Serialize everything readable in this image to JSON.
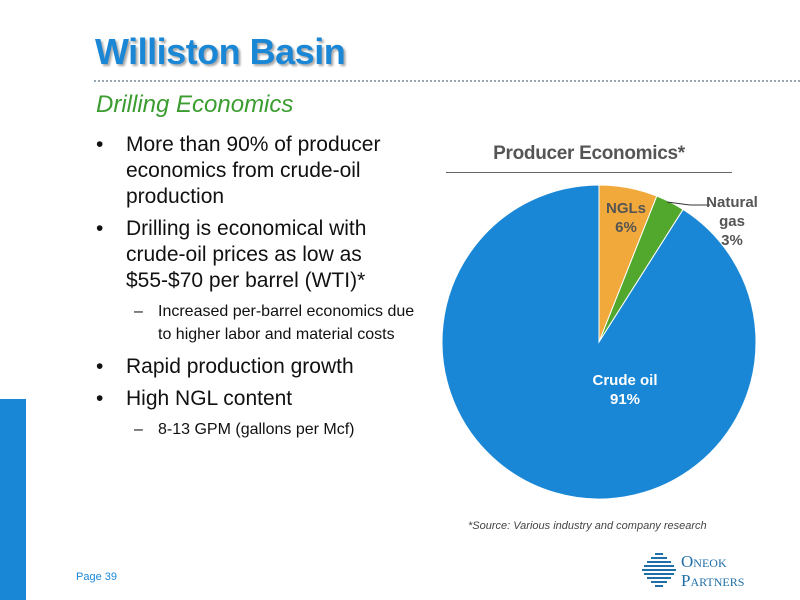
{
  "slide": {
    "title": "Williston Basin",
    "subtitle": "Drilling Economics",
    "page_label": "Page 39",
    "source_note": "*Source: Various industry and company research"
  },
  "bullets": [
    {
      "level": 1,
      "text": "More than 90% of producer economics from crude-oil production"
    },
    {
      "level": 1,
      "text": "Drilling is economical with crude-oil prices as low as $55-$70 per barrel (WTI)*"
    },
    {
      "level": 2,
      "text": "Increased per-barrel economics due to higher labor and material costs"
    },
    {
      "level": 1,
      "text": "Rapid production growth"
    },
    {
      "level": 1,
      "text": "High NGL content"
    },
    {
      "level": 2,
      "text": "8-13 GPM (gallons per Mcf)"
    }
  ],
  "logo": {
    "line1_initial": "O",
    "line1_rest": "NEOK",
    "line2_initial": "P",
    "line2_rest": "ARTNERS"
  },
  "colors": {
    "brand_blue": "#1a87d6",
    "subtitle_green": "#3b9c2f",
    "ngl_orange": "#f2a93b",
    "gas_green": "#52a82c",
    "oil_blue": "#1a87d6"
  },
  "chart_data": {
    "type": "pie",
    "title": "Producer Economics*",
    "slices": [
      {
        "name": "NGLs",
        "value": 6,
        "label": "6%",
        "color": "#f2a93b"
      },
      {
        "name": "Natural gas",
        "value": 3,
        "label": "3%",
        "color": "#52a82c"
      },
      {
        "name": "Crude oil",
        "value": 91,
        "label": "91%",
        "color": "#1a87d6"
      }
    ],
    "start_angle_deg": 0,
    "direction": "clockwise",
    "legend": "none",
    "data_labels": {
      "ngl": [
        "NGLs",
        "6%"
      ],
      "gas": [
        "Natural",
        "gas",
        "3%"
      ],
      "oil": [
        "Crude oil",
        "91%"
      ]
    }
  }
}
